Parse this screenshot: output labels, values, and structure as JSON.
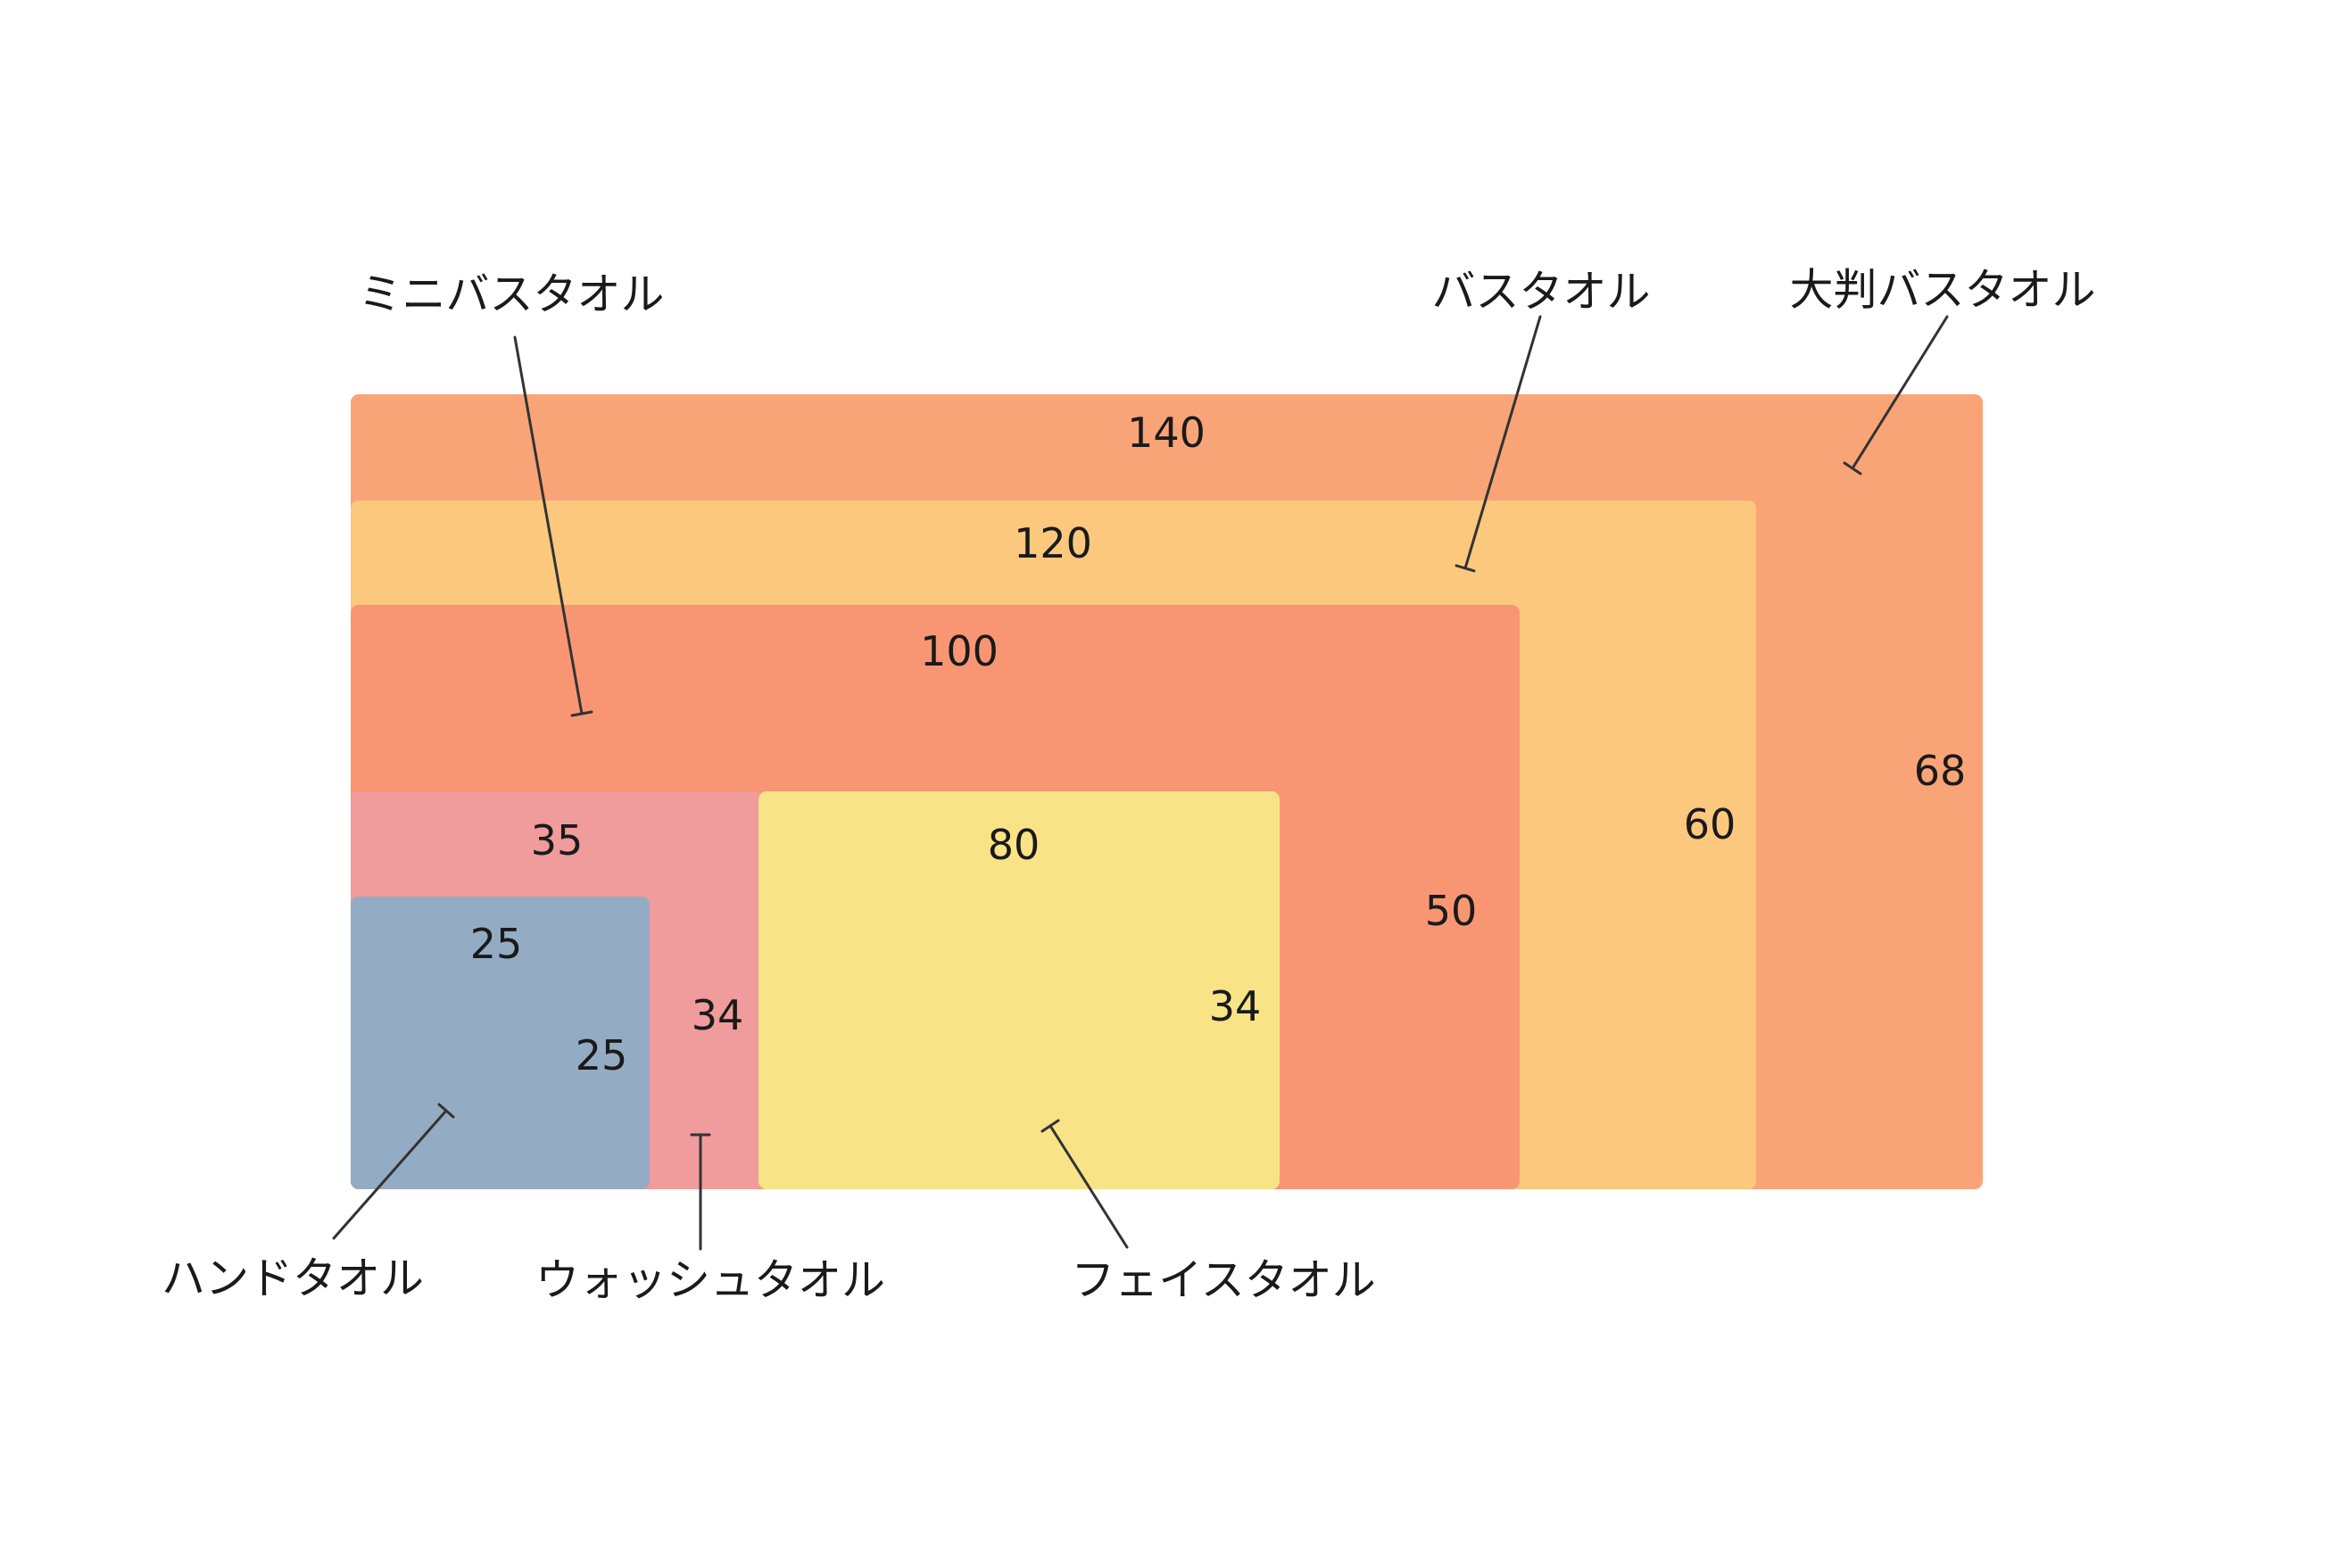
{
  "towels": [
    {
      "id": "large-bath-towel",
      "name": "大判バスタオル",
      "width": "140",
      "height": "68",
      "color": "#F9A477"
    },
    {
      "id": "bath-towel",
      "name": "バスタオル",
      "width": "120",
      "height": "60",
      "color": "#FBC87E"
    },
    {
      "id": "mini-bath-towel",
      "name": "ミニバスタオル",
      "width": "100",
      "height": "50",
      "color": "#F89674"
    },
    {
      "id": "wash-towel",
      "name": "ウォッシュタオル",
      "width": "35",
      "height": "34",
      "color": "#F09B9C"
    },
    {
      "id": "face-towel",
      "name": "フェイスタオル",
      "width": "80",
      "height": "34",
      "color": "#F8E486"
    },
    {
      "id": "hand-towel",
      "name": "ハンドタオル",
      "width": "25",
      "height": "25",
      "color": "#94ABC4"
    }
  ]
}
